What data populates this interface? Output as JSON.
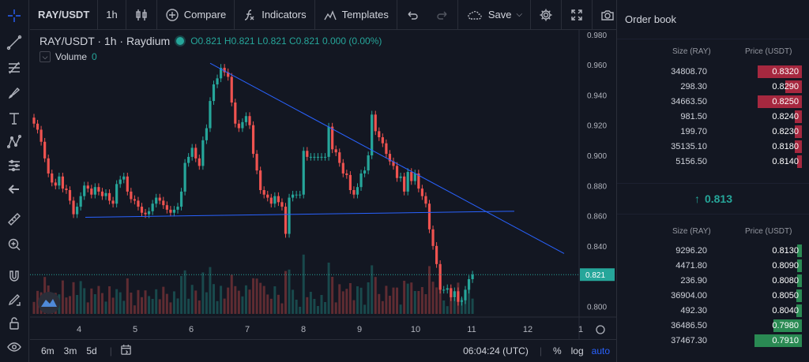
{
  "toolbar": {
    "symbol": "RAY/USDT",
    "interval": "1h",
    "compare_label": "Compare",
    "indicators_label": "Indicators",
    "templates_label": "Templates",
    "save_label": "Save"
  },
  "legend": {
    "title": "RAY/USDT · 1h · Raydium",
    "ohlc": "O0.821  H0.821  L0.821  C0.821  0.000 (0.00%)",
    "volume_label": "Volume",
    "volume_value": "0"
  },
  "bottom": {
    "timeframes": [
      "6m",
      "3m",
      "5d"
    ],
    "time": "06:04:24 (UTC)",
    "percent_label": "%",
    "log_label": "log",
    "auto_label": "auto"
  },
  "colors": {
    "up": "#26a69a",
    "down": "#ef5350",
    "trendline": "#2962ff"
  },
  "chart_data": {
    "type": "candlestick",
    "x_tick_labels": [
      "4",
      "5",
      "6",
      "7",
      "8",
      "9",
      "10",
      "11",
      "12",
      "1"
    ],
    "y_tick_labels": [
      "0.980",
      "0.960",
      "0.940",
      "0.920",
      "0.900",
      "0.880",
      "0.860",
      "0.840",
      "0.800"
    ],
    "ylim": [
      0.795,
      0.982
    ],
    "last_price_label": "0.821",
    "last_price": 0.821,
    "closes": [
      0.921,
      0.917,
      0.909,
      0.898,
      0.888,
      0.882,
      0.88,
      0.886,
      0.878,
      0.877,
      0.87,
      0.861,
      0.866,
      0.873,
      0.88,
      0.878,
      0.874,
      0.879,
      0.876,
      0.873,
      0.875,
      0.87,
      0.868,
      0.881,
      0.884,
      0.886,
      0.876,
      0.871,
      0.87,
      0.866,
      0.862,
      0.861,
      0.863,
      0.868,
      0.872,
      0.87,
      0.867,
      0.864,
      0.862,
      0.864,
      0.866,
      0.876,
      0.895,
      0.899,
      0.905,
      0.898,
      0.893,
      0.91,
      0.918,
      0.936,
      0.947,
      0.951,
      0.958,
      0.955,
      0.952,
      0.935,
      0.921,
      0.918,
      0.922,
      0.926,
      0.92,
      0.901,
      0.89,
      0.877,
      0.874,
      0.872,
      0.868,
      0.873,
      0.869,
      0.866,
      0.848,
      0.872,
      0.874,
      0.874,
      0.874,
      0.903,
      0.899,
      0.899,
      0.899,
      0.899,
      0.899,
      0.899,
      0.919,
      0.904,
      0.902,
      0.895,
      0.888,
      0.887,
      0.877,
      0.874,
      0.879,
      0.888,
      0.89,
      0.9,
      0.927,
      0.916,
      0.912,
      0.908,
      0.901,
      0.896,
      0.893,
      0.885,
      0.886,
      0.876,
      0.889,
      0.883,
      0.888,
      0.878,
      0.873,
      0.868,
      0.851,
      0.84,
      0.828,
      0.811,
      0.811,
      0.812,
      0.806,
      0.81,
      0.803,
      0.804,
      0.811,
      0.818,
      0.821
    ]
  },
  "orderbook": {
    "title": "Order book",
    "size_header": "Size (RAY)",
    "price_header": "Price (USDT)",
    "last_price": "0.813",
    "asks": [
      {
        "size": "34808.70",
        "price": "0.8320",
        "depth": 0.94
      },
      {
        "size": "298.30",
        "price": "0.8290",
        "depth": 0.35
      },
      {
        "size": "34663.50",
        "price": "0.8250",
        "depth": 0.94
      },
      {
        "size": "981.50",
        "price": "0.8240",
        "depth": 0.15
      },
      {
        "size": "199.70",
        "price": "0.8230",
        "depth": 0.15
      },
      {
        "size": "35135.10",
        "price": "0.8180",
        "depth": 0.15
      },
      {
        "size": "5156.50",
        "price": "0.8140",
        "depth": 0.08
      }
    ],
    "bids": [
      {
        "size": "9296.20",
        "price": "0.8130",
        "depth": 0.07
      },
      {
        "size": "4471.80",
        "price": "0.8090",
        "depth": 0.07
      },
      {
        "size": "236.90",
        "price": "0.8080",
        "depth": 0.07
      },
      {
        "size": "36904.00",
        "price": "0.8050",
        "depth": 0.12
      },
      {
        "size": "492.30",
        "price": "0.8040",
        "depth": 0.12
      },
      {
        "size": "36486.50",
        "price": "0.7980",
        "depth": 0.6
      },
      {
        "size": "37467.30",
        "price": "0.7910",
        "depth": 1.0
      }
    ]
  }
}
